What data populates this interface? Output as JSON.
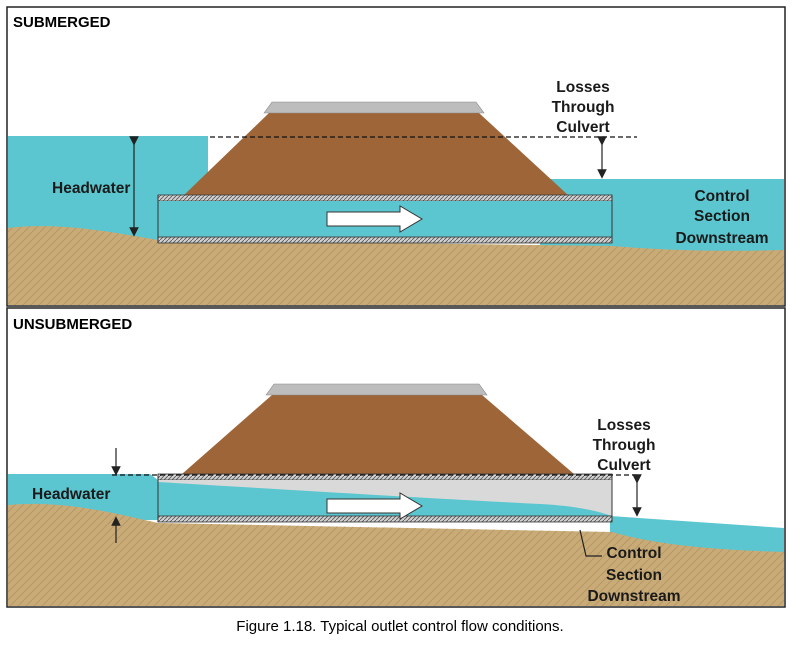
{
  "figure": {
    "caption": "Figure 1.18.  Typical outlet control flow conditions."
  },
  "panels": [
    {
      "title": "SUBMERGED",
      "labels": {
        "headwater": "Headwater",
        "losses": [
          "Losses",
          "Through",
          "Culvert"
        ],
        "control": [
          "Control",
          "Section",
          "Downstream"
        ]
      }
    },
    {
      "title": "UNSUBMERGED",
      "labels": {
        "headwater": "Headwater",
        "losses": [
          "Losses",
          "Through",
          "Culvert"
        ],
        "control": [
          "Control",
          "Section",
          "Downstream"
        ]
      }
    }
  ],
  "colors": {
    "water": "#5bc6cf",
    "embankment": "#9e6638",
    "ground": "#c9ab78",
    "road": "#bdbdbd",
    "pipe": "#b8b8b8"
  }
}
